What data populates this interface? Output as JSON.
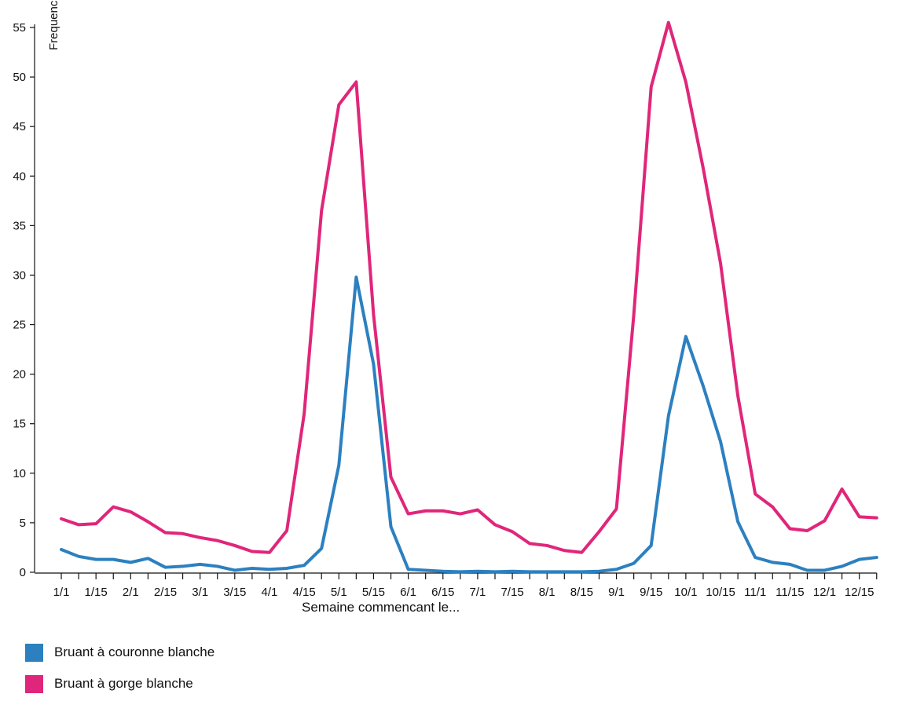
{
  "chart_data": {
    "type": "line",
    "ylabel": "Frequence",
    "xlabel": "Semaine commencant le...",
    "ylim": [
      0,
      55
    ],
    "yticks": [
      0,
      5,
      10,
      15,
      20,
      25,
      30,
      35,
      40,
      45,
      50,
      55
    ],
    "x": [
      "1/1",
      "1/8",
      "1/15",
      "1/22",
      "2/1",
      "2/8",
      "2/15",
      "2/22",
      "3/1",
      "3/8",
      "3/15",
      "3/22",
      "4/1",
      "4/8",
      "4/15",
      "4/22",
      "5/1",
      "5/8",
      "5/15",
      "5/22",
      "6/1",
      "6/8",
      "6/15",
      "6/22",
      "7/1",
      "7/8",
      "7/15",
      "7/22",
      "8/1",
      "8/8",
      "8/15",
      "8/22",
      "9/1",
      "9/8",
      "9/15",
      "9/22",
      "10/1",
      "10/8",
      "10/15",
      "10/22",
      "11/1",
      "11/8",
      "11/15",
      "11/22",
      "12/1",
      "12/8",
      "12/15",
      "12/22"
    ],
    "xtick_labels": [
      "1/1",
      "1/15",
      "2/1",
      "2/15",
      "3/1",
      "3/15",
      "4/1",
      "4/15",
      "5/1",
      "5/15",
      "6/1",
      "6/15",
      "7/1",
      "7/15",
      "8/1",
      "8/15",
      "9/1",
      "9/15",
      "10/1",
      "10/15",
      "11/1",
      "11/15",
      "12/1",
      "12/15"
    ],
    "series": [
      {
        "name": "Bruant à couronne blanche",
        "color": "#2c80c0",
        "values": [
          2.3,
          1.6,
          1.3,
          1.3,
          1.0,
          1.4,
          0.5,
          0.6,
          0.8,
          0.6,
          0.2,
          0.4,
          0.3,
          0.4,
          0.7,
          2.4,
          10.8,
          29.8,
          21.0,
          4.6,
          0.3,
          0.2,
          0.1,
          0.05,
          0.1,
          0.05,
          0.1,
          0.05,
          0.05,
          0.05,
          0.05,
          0.1,
          0.3,
          0.9,
          2.7,
          15.8,
          23.8,
          18.8,
          13.2,
          5.1,
          1.5,
          1.0,
          0.8,
          0.2,
          0.2,
          0.6,
          1.3,
          1.5
        ]
      },
      {
        "name": "Bruant à gorge blanche",
        "color": "#e0267a",
        "values": [
          5.4,
          4.8,
          4.9,
          6.6,
          6.1,
          5.1,
          4.0,
          3.9,
          3.5,
          3.2,
          2.7,
          2.1,
          2.0,
          4.2,
          16.0,
          36.5,
          47.2,
          49.5,
          26.0,
          9.6,
          5.9,
          6.2,
          6.2,
          5.9,
          6.3,
          4.8,
          4.1,
          2.9,
          2.7,
          2.2,
          2.0,
          4.1,
          6.4,
          26.0,
          49.0,
          55.5,
          49.5,
          40.8,
          31.2,
          17.8,
          7.9,
          6.6,
          4.4,
          4.2,
          5.2,
          8.4,
          5.6,
          5.5
        ]
      }
    ],
    "grid": false,
    "legend": "bottom-left"
  }
}
